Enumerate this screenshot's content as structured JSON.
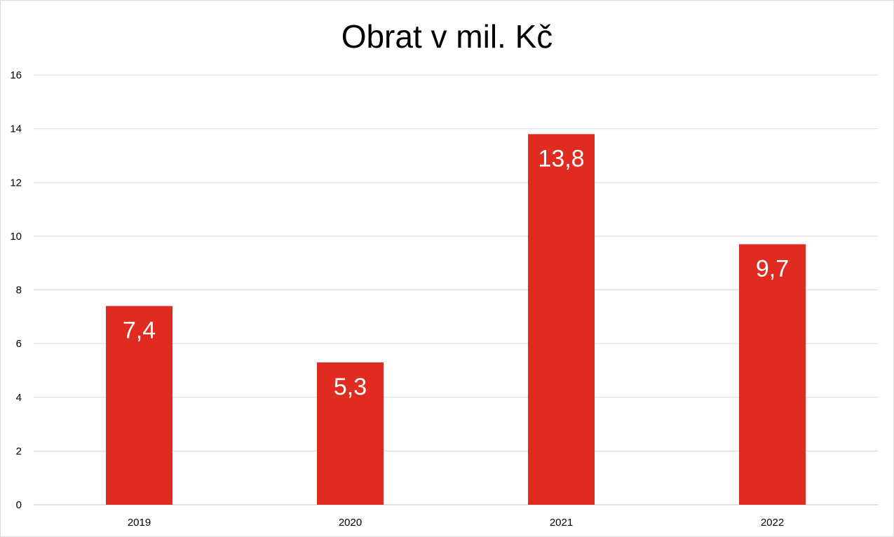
{
  "chart_data": {
    "type": "bar",
    "title": "Obrat v mil. Kč",
    "categories": [
      "2019",
      "2020",
      "2021",
      "2022"
    ],
    "values": [
      7.4,
      5.3,
      13.8,
      9.7
    ],
    "value_labels": [
      "7,4",
      "5,3",
      "13,8",
      "9,7"
    ],
    "ylim": [
      0,
      16
    ],
    "yticks": [
      "0",
      "2",
      "4",
      "6",
      "8",
      "10",
      "12",
      "14",
      "16"
    ],
    "xlabel": "",
    "ylabel": "",
    "grid": true,
    "legend": "none",
    "colors": {
      "bar": "#e02b20",
      "grid": "#d9d9d9",
      "axis": "#bfbfbf",
      "label": "#ffffff"
    }
  }
}
